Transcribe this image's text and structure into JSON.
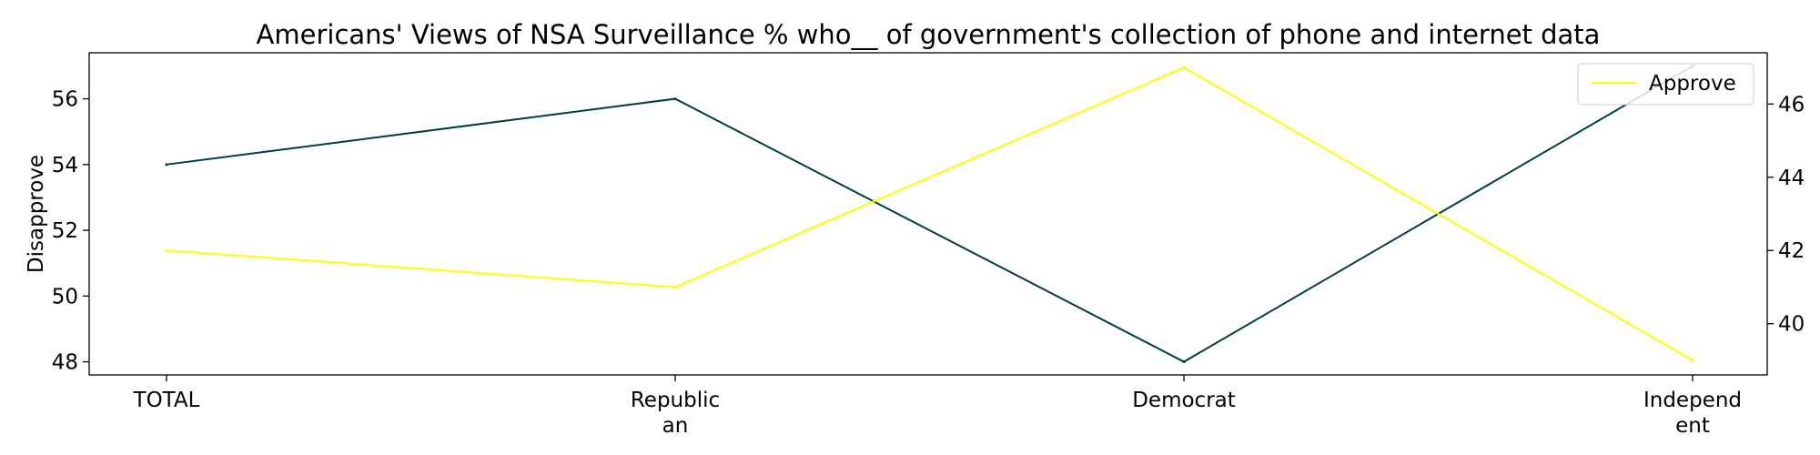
{
  "chart_data": {
    "type": "line",
    "title": "Americans' Views of NSA Surveillance % who__ of government's collection of phone and internet data",
    "categories": [
      "TOTAL",
      "Republic\nan",
      "Democrat",
      "Independ\nent"
    ],
    "series": [
      {
        "name": "Disapprove",
        "axis": "left",
        "values": [
          54,
          56,
          48,
          57
        ],
        "color": "#003f3f"
      },
      {
        "name": "Approve",
        "axis": "right",
        "values": [
          42,
          41,
          47,
          39
        ],
        "color": "#ffff00"
      }
    ],
    "y_left": {
      "label": "Disapprove",
      "ylim": [
        47.6,
        57.4
      ],
      "ticks": [
        48,
        50,
        52,
        54,
        56
      ]
    },
    "y_right": {
      "label": "",
      "ylim": [
        38.6,
        47.4
      ],
      "ticks": [
        40,
        42,
        44,
        46
      ]
    },
    "legend": {
      "placement": "top-right",
      "entries": [
        "Approve"
      ]
    },
    "grid": false
  }
}
